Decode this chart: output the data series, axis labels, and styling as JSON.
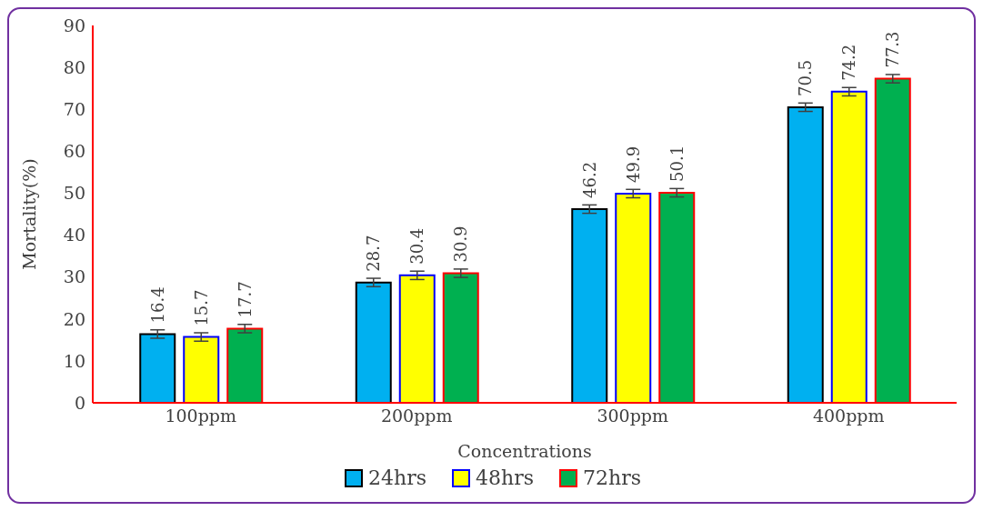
{
  "chart_data": {
    "type": "bar",
    "xlabel": "Concentrations",
    "ylabel": "Mortality(%)",
    "categories": [
      "100ppm",
      "200ppm",
      "300ppm",
      "400ppm"
    ],
    "series": [
      {
        "name": "24hrs",
        "color": "#00b0f0",
        "values": [
          16.4,
          28.7,
          46.2,
          70.5
        ],
        "errors": [
          1,
          1,
          1,
          1
        ]
      },
      {
        "name": "48hrs",
        "color": "#ffff00",
        "values": [
          15.7,
          30.4,
          49.9,
          74.2
        ],
        "errors": [
          1,
          1,
          1,
          1
        ]
      },
      {
        "name": "72hrs",
        "color": "#00b050",
        "values": [
          17.7,
          30.9,
          50.1,
          77.3
        ],
        "errors": [
          1,
          1,
          1,
          1
        ]
      }
    ],
    "ylim": [
      0,
      90
    ],
    "yticks": [
      0,
      10,
      20,
      30,
      40,
      50,
      60,
      70,
      80,
      90
    ],
    "data_labels": true,
    "legend": "bottom",
    "grid": false
  }
}
